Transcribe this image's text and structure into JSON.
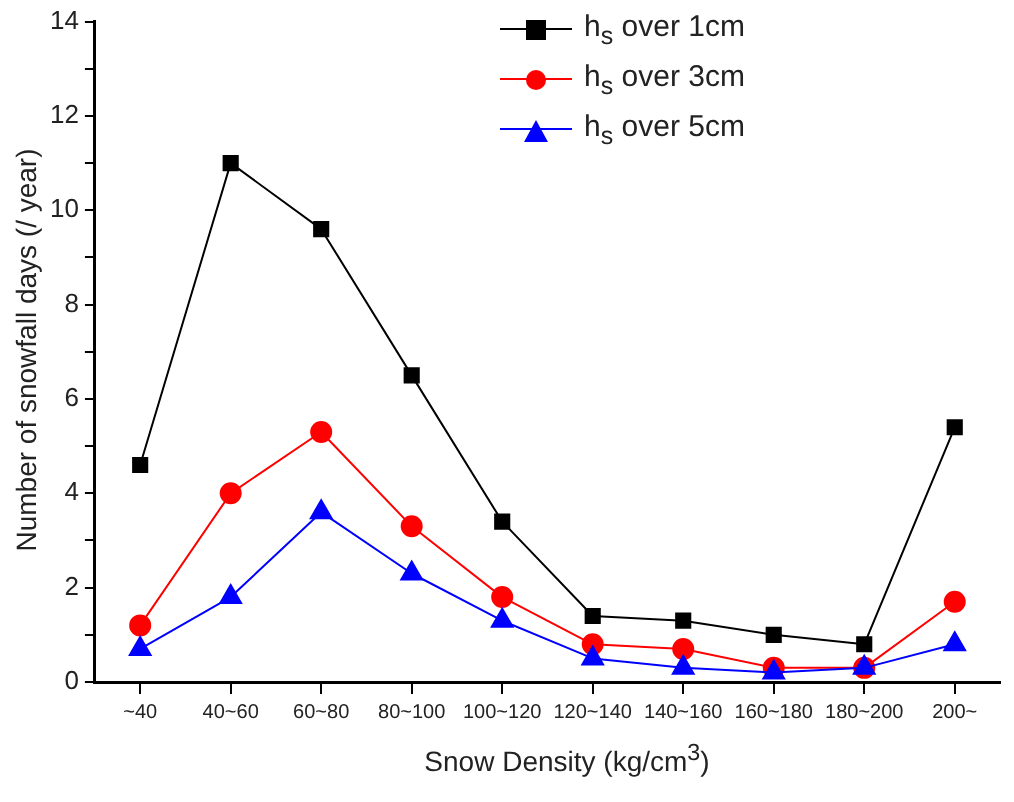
{
  "chart_data": {
    "type": "line",
    "xlabel": "Snow Density (kg/cm$^{3}$)",
    "ylabel": "Number of snowfall days (/ year)",
    "categories": [
      "~40",
      "40~60",
      "60~80",
      "80~100",
      "100~120",
      "120~140",
      "140~160",
      "160~180",
      "180~200",
      "200~"
    ],
    "ylim": [
      0,
      14
    ],
    "yticks": [
      0,
      {
        "value": 1,
        "label": null
      },
      2,
      {
        "value": 3,
        "label": null
      },
      4,
      {
        "value": 5,
        "label": null
      },
      6,
      {
        "value": 7,
        "label": null
      },
      8,
      {
        "value": 9,
        "label": null
      },
      10,
      {
        "value": 11,
        "label": null
      },
      12,
      {
        "value": 13,
        "label": null
      },
      14
    ],
    "grid": false,
    "legend": "top",
    "line_style": "solid",
    "series": [
      {
        "name": "h$_{s}$ over 1cm",
        "color": "#000000",
        "marker": "square",
        "values": [
          4.6,
          11,
          9.6,
          6.5,
          3.4,
          1.4,
          1.3,
          1.0,
          0.8,
          5.4
        ]
      },
      {
        "name": "h$_{s}$ over 3cm",
        "color": "#ff0000",
        "marker": "circle",
        "values": [
          1.2,
          4.0,
          5.3,
          3.3,
          1.8,
          0.8,
          0.7,
          0.3,
          0.3,
          1.7
        ]
      },
      {
        "name": "h$_{s}$ over 5cm",
        "color": "#0000ff",
        "marker": "triangle",
        "values": [
          0.7,
          1.8,
          3.6,
          2.3,
          1.3,
          0.5,
          0.3,
          0.2,
          0.3,
          0.8
        ]
      }
    ]
  }
}
